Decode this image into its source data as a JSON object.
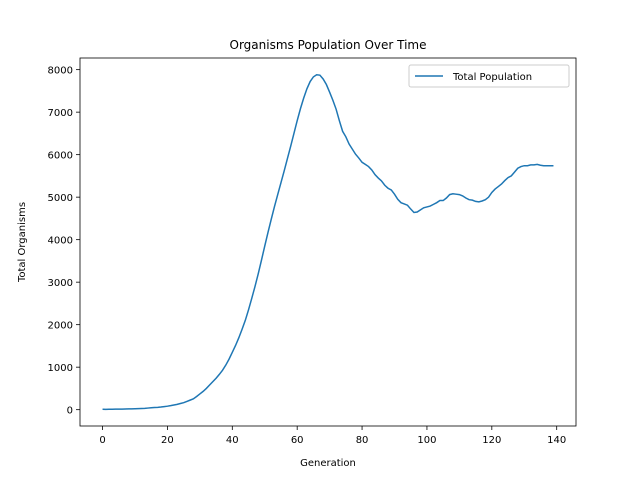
{
  "chart_data": {
    "type": "line",
    "title": "Organisms Population Over Time",
    "x_label": "Generation",
    "y_label": "Total Organisms",
    "legend": "upper right",
    "x": [
      0,
      1,
      2,
      3,
      4,
      5,
      6,
      7,
      8,
      9,
      10,
      11,
      12,
      13,
      14,
      15,
      16,
      17,
      18,
      19,
      20,
      21,
      22,
      23,
      24,
      25,
      26,
      27,
      28,
      29,
      30,
      31,
      32,
      33,
      34,
      35,
      36,
      37,
      38,
      39,
      40,
      41,
      42,
      43,
      44,
      45,
      46,
      47,
      48,
      49,
      50,
      51,
      52,
      53,
      54,
      55,
      56,
      57,
      58,
      59,
      60,
      61,
      62,
      63,
      64,
      65,
      66,
      67,
      68,
      69,
      70,
      71,
      72,
      73,
      74,
      75,
      76,
      77,
      78,
      79,
      80,
      81,
      82,
      83,
      84,
      85,
      86,
      87,
      88,
      89,
      90,
      91,
      92,
      93,
      94,
      95,
      96,
      97,
      98,
      99,
      100,
      101,
      102,
      103,
      104,
      105,
      106,
      107,
      108,
      109,
      110,
      111,
      112,
      113,
      114,
      115,
      116,
      117,
      118,
      119,
      120,
      121,
      122,
      123,
      124,
      125,
      126,
      127,
      128,
      129,
      130,
      131,
      132,
      133,
      134,
      135,
      136,
      137,
      138,
      139
    ],
    "series": [
      {
        "name": "Total Population",
        "color": "#1f77b4",
        "values": [
          10,
          8,
          9,
          10,
          12,
          13,
          14,
          16,
          18,
          20,
          22,
          25,
          28,
          32,
          38,
          44,
          50,
          55,
          62,
          72,
          82,
          95,
          110,
          125,
          145,
          165,
          195,
          225,
          255,
          310,
          370,
          430,
          500,
          580,
          660,
          740,
          830,
          930,
          1050,
          1190,
          1350,
          1510,
          1690,
          1890,
          2100,
          2350,
          2620,
          2900,
          3200,
          3520,
          3850,
          4170,
          4480,
          4780,
          5060,
          5340,
          5620,
          5910,
          6200,
          6500,
          6800,
          7080,
          7330,
          7550,
          7720,
          7830,
          7880,
          7870,
          7780,
          7650,
          7470,
          7280,
          7070,
          6800,
          6550,
          6420,
          6250,
          6130,
          6010,
          5920,
          5820,
          5770,
          5720,
          5640,
          5530,
          5450,
          5380,
          5280,
          5210,
          5170,
          5070,
          4950,
          4870,
          4840,
          4810,
          4720,
          4640,
          4650,
          4700,
          4750,
          4770,
          4790,
          4830,
          4870,
          4920,
          4920,
          4980,
          5060,
          5080,
          5070,
          5060,
          5030,
          4980,
          4940,
          4930,
          4900,
          4890,
          4910,
          4940,
          5000,
          5110,
          5190,
          5250,
          5310,
          5390,
          5460,
          5500,
          5590,
          5680,
          5720,
          5740,
          5740,
          5760,
          5760,
          5770,
          5750,
          5740,
          5740,
          5740,
          5740
        ]
      }
    ],
    "xlim": [
      -6.95,
      145.95
    ],
    "ylim": [
      -384,
      8274
    ],
    "xticks": [
      0,
      20,
      40,
      60,
      80,
      100,
      120,
      140
    ],
    "yticks": [
      0,
      1000,
      2000,
      3000,
      4000,
      5000,
      6000,
      7000,
      8000
    ]
  }
}
